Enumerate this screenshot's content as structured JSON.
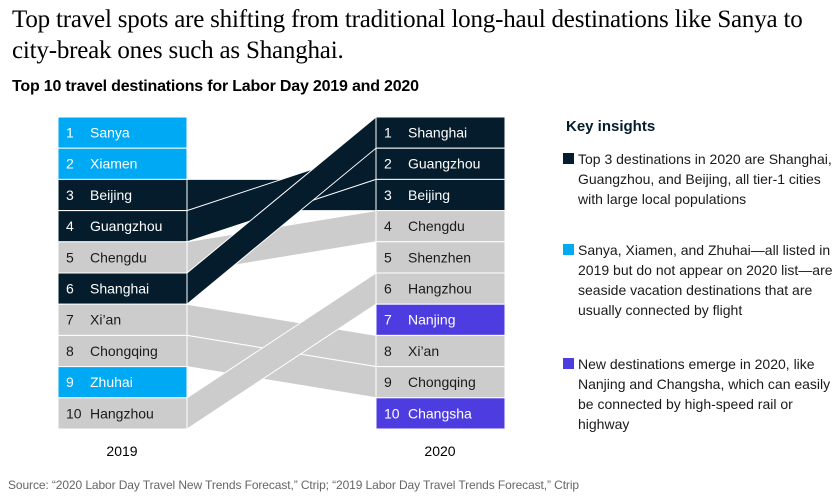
{
  "headline": "Top travel spots are shifting from traditional long-haul destinations like Sanya to city-break ones such as Shanghai.",
  "subtitle": "Top 10 travel destinations for Labor Day 2019 and 2020",
  "colors": {
    "tier1": "#051c2c",
    "seaside": "#00a9f4",
    "new": "#4d3de0",
    "other": "#cccccc",
    "text_dark": "#051c2c"
  },
  "chart_data": {
    "type": "table",
    "title": "Top 10 travel destinations for Labor Day 2019 and 2020",
    "columns": [
      "2019",
      "2020"
    ],
    "rankings_2019": [
      {
        "rank": 1,
        "city": "Sanya",
        "category": "seaside"
      },
      {
        "rank": 2,
        "city": "Xiamen",
        "category": "seaside"
      },
      {
        "rank": 3,
        "city": "Beijing",
        "category": "tier1"
      },
      {
        "rank": 4,
        "city": "Guangzhou",
        "category": "tier1"
      },
      {
        "rank": 5,
        "city": "Chengdu",
        "category": "other"
      },
      {
        "rank": 6,
        "city": "Shanghai",
        "category": "tier1"
      },
      {
        "rank": 7,
        "city": "Xi’an",
        "category": "other"
      },
      {
        "rank": 8,
        "city": "Chongqing",
        "category": "other"
      },
      {
        "rank": 9,
        "city": "Zhuhai",
        "category": "seaside"
      },
      {
        "rank": 10,
        "city": "Hangzhou",
        "category": "other"
      }
    ],
    "rankings_2020": [
      {
        "rank": 1,
        "city": "Shanghai",
        "category": "tier1"
      },
      {
        "rank": 2,
        "city": "Guangzhou",
        "category": "tier1"
      },
      {
        "rank": 3,
        "city": "Beijing",
        "category": "tier1"
      },
      {
        "rank": 4,
        "city": "Chengdu",
        "category": "other"
      },
      {
        "rank": 5,
        "city": "Shenzhen",
        "category": "other"
      },
      {
        "rank": 6,
        "city": "Hangzhou",
        "category": "other"
      },
      {
        "rank": 7,
        "city": "Nanjing",
        "category": "new"
      },
      {
        "rank": 8,
        "city": "Xi’an",
        "category": "other"
      },
      {
        "rank": 9,
        "city": "Chongqing",
        "category": "other"
      },
      {
        "rank": 10,
        "city": "Changsha",
        "category": "new"
      }
    ],
    "flows": [
      {
        "city": "Beijing",
        "from_rank": 3,
        "to_rank": 3,
        "category": "tier1"
      },
      {
        "city": "Guangzhou",
        "from_rank": 4,
        "to_rank": 2,
        "category": "tier1"
      },
      {
        "city": "Shanghai",
        "from_rank": 6,
        "to_rank": 1,
        "category": "tier1"
      },
      {
        "city": "Chengdu",
        "from_rank": 5,
        "to_rank": 4,
        "category": "other"
      },
      {
        "city": "Xi’an",
        "from_rank": 7,
        "to_rank": 8,
        "category": "other"
      },
      {
        "city": "Chongqing",
        "from_rank": 8,
        "to_rank": 9,
        "category": "other"
      },
      {
        "city": "Hangzhou",
        "from_rank": 10,
        "to_rank": 6,
        "category": "other"
      }
    ]
  },
  "insights": {
    "title": "Key insights",
    "items": [
      {
        "category": "tier1",
        "text": "Top 3 destinations in 2020 are Shanghai, Guangzhou, and Beijing, all tier-1 cities with large local populations"
      },
      {
        "category": "seaside",
        "text": "Sanya, Xiamen, and Zhuhai—all listed in 2019 but do not appear on 2020 list—are seaside vacation destinations that are usually connected by flight"
      },
      {
        "category": "new",
        "text": "New destinations emerge in 2020, like Nanjing and Changsha, which can easily be connected by high-speed rail or highway"
      }
    ]
  },
  "source": "Source: “2020 Labor Day Travel New Trends Forecast,” Ctrip; “2019 Labor Day Travel Trends Forecast,” Ctrip"
}
